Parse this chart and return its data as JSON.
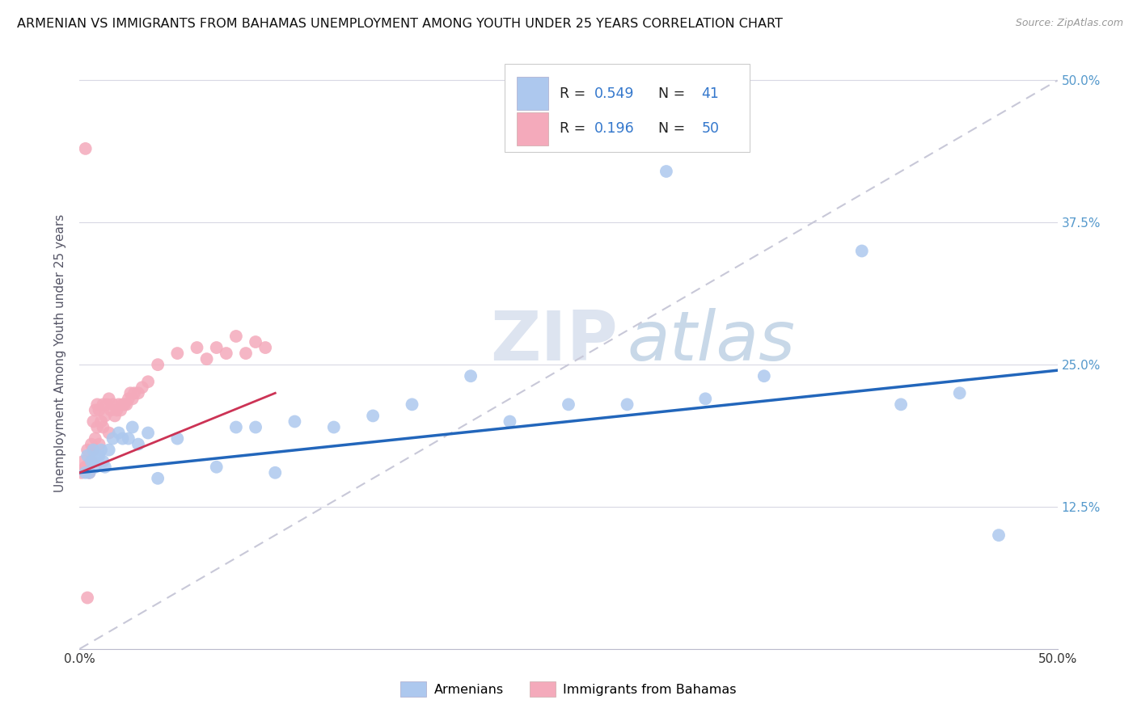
{
  "title": "ARMENIAN VS IMMIGRANTS FROM BAHAMAS UNEMPLOYMENT AMONG YOUTH UNDER 25 YEARS CORRELATION CHART",
  "source": "Source: ZipAtlas.com",
  "ylabel": "Unemployment Among Youth under 25 years",
  "xlim": [
    0.0,
    0.5
  ],
  "ylim": [
    0.0,
    0.52
  ],
  "armenian_R": 0.549,
  "armenian_N": 41,
  "bahamas_R": 0.196,
  "bahamas_N": 50,
  "armenian_color": "#adc8ee",
  "armenian_line_color": "#2266bb",
  "bahamas_color": "#f4aabb",
  "bahamas_line_color": "#cc3355",
  "diagonal_color": "#c8c8d8",
  "watermark_zip": "ZIP",
  "watermark_atlas": "atlas",
  "arm_x": [
    0.003,
    0.004,
    0.005,
    0.006,
    0.007,
    0.007,
    0.008,
    0.009,
    0.01,
    0.011,
    0.012,
    0.013,
    0.015,
    0.017,
    0.02,
    0.022,
    0.025,
    0.027,
    0.03,
    0.035,
    0.04,
    0.05,
    0.07,
    0.08,
    0.09,
    0.1,
    0.11,
    0.13,
    0.15,
    0.17,
    0.2,
    0.22,
    0.25,
    0.28,
    0.3,
    0.32,
    0.35,
    0.4,
    0.42,
    0.45,
    0.47
  ],
  "arm_y": [
    0.155,
    0.17,
    0.155,
    0.165,
    0.175,
    0.165,
    0.16,
    0.17,
    0.17,
    0.175,
    0.165,
    0.16,
    0.175,
    0.185,
    0.19,
    0.185,
    0.185,
    0.195,
    0.18,
    0.19,
    0.15,
    0.185,
    0.16,
    0.195,
    0.195,
    0.155,
    0.2,
    0.195,
    0.205,
    0.215,
    0.24,
    0.2,
    0.215,
    0.215,
    0.42,
    0.22,
    0.24,
    0.35,
    0.215,
    0.225,
    0.1
  ],
  "bah_x": [
    0.001,
    0.002,
    0.003,
    0.004,
    0.005,
    0.006,
    0.006,
    0.007,
    0.007,
    0.008,
    0.008,
    0.009,
    0.009,
    0.01,
    0.01,
    0.011,
    0.012,
    0.012,
    0.013,
    0.014,
    0.015,
    0.015,
    0.016,
    0.017,
    0.018,
    0.019,
    0.02,
    0.021,
    0.022,
    0.023,
    0.024,
    0.025,
    0.026,
    0.027,
    0.028,
    0.03,
    0.032,
    0.035,
    0.04,
    0.05,
    0.06,
    0.065,
    0.07,
    0.075,
    0.08,
    0.085,
    0.09,
    0.095,
    0.003,
    0.004
  ],
  "bah_y": [
    0.155,
    0.165,
    0.16,
    0.175,
    0.155,
    0.165,
    0.18,
    0.175,
    0.2,
    0.185,
    0.21,
    0.195,
    0.215,
    0.18,
    0.21,
    0.2,
    0.195,
    0.215,
    0.205,
    0.215,
    0.19,
    0.22,
    0.21,
    0.215,
    0.205,
    0.21,
    0.215,
    0.21,
    0.215,
    0.215,
    0.215,
    0.22,
    0.225,
    0.22,
    0.225,
    0.225,
    0.23,
    0.235,
    0.25,
    0.26,
    0.265,
    0.255,
    0.265,
    0.26,
    0.275,
    0.26,
    0.27,
    0.265,
    0.44,
    0.045
  ],
  "arm_line_x": [
    0.0,
    0.5
  ],
  "arm_line_y": [
    0.155,
    0.245
  ],
  "bah_line_x": [
    0.0,
    0.1
  ],
  "bah_line_y": [
    0.155,
    0.225
  ]
}
